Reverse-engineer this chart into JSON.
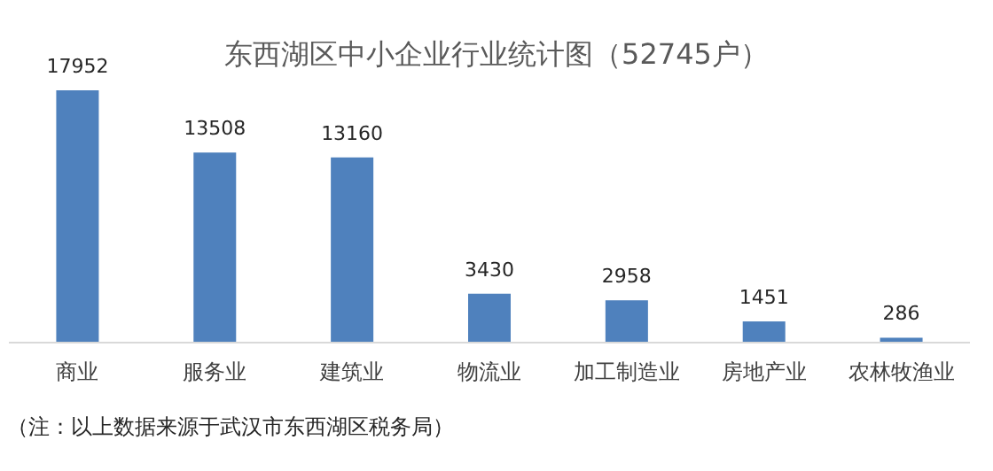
{
  "chart_data": {
    "type": "bar",
    "title": "东西湖区中小企业行业统计图（52745户）",
    "categories": [
      "商业",
      "服务业",
      "建筑业",
      "物流业",
      "加工制造业",
      "房地产业",
      "农林牧渔业"
    ],
    "values": [
      17952,
      13508,
      13160,
      3430,
      2958,
      1451,
      286
    ],
    "color": "#4f81bd",
    "data_labels": true,
    "annotations": [
      "（注：以上数据来源于武汉市东西湖区税务局）"
    ]
  }
}
